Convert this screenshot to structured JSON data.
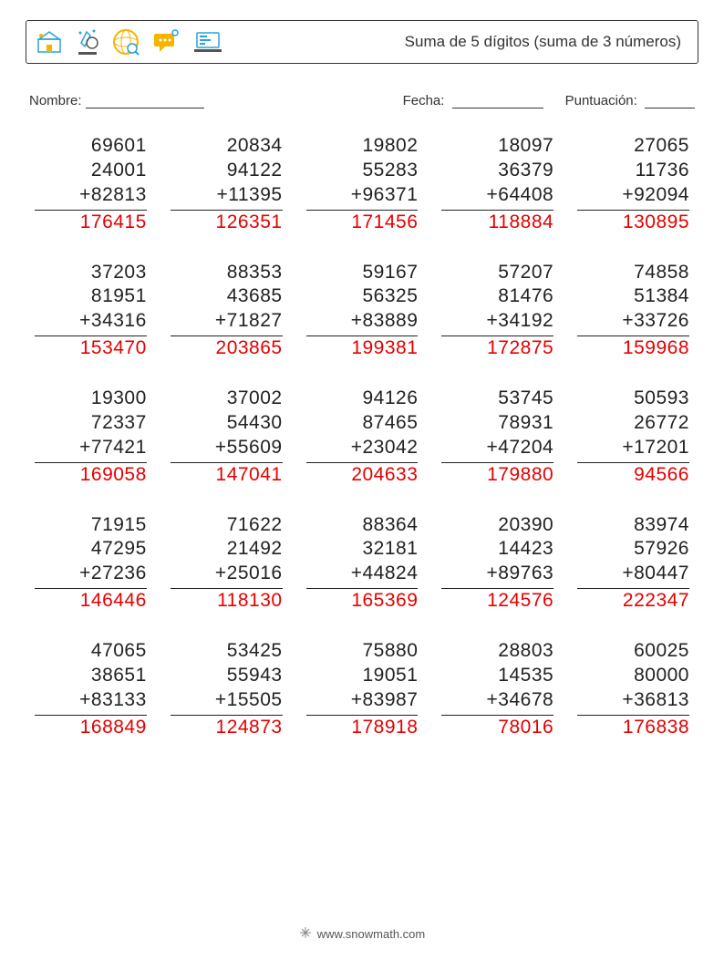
{
  "title": "Suma de 5 dígitos (suma de 3 números)",
  "meta": {
    "name_label": "Nombre:",
    "date_label": "Fecha:",
    "score_label": "Puntuación:"
  },
  "footer": "www.snowmath.com",
  "text_color": "#222222",
  "answer_color": "#e60000",
  "font_size_pt": 16,
  "background_color": "#ffffff",
  "operator": "+",
  "problems": [
    [
      {
        "a": [
          69601,
          24001,
          82813
        ],
        "ans": 176415
      },
      {
        "a": [
          20834,
          94122,
          11395
        ],
        "ans": 126351
      },
      {
        "a": [
          19802,
          55283,
          96371
        ],
        "ans": 171456
      },
      {
        "a": [
          18097,
          36379,
          64408
        ],
        "ans": 118884
      },
      {
        "a": [
          27065,
          11736,
          92094
        ],
        "ans": 130895
      }
    ],
    [
      {
        "a": [
          37203,
          81951,
          34316
        ],
        "ans": 153470
      },
      {
        "a": [
          88353,
          43685,
          71827
        ],
        "ans": 203865
      },
      {
        "a": [
          59167,
          56325,
          83889
        ],
        "ans": 199381
      },
      {
        "a": [
          57207,
          81476,
          34192
        ],
        "ans": 172875
      },
      {
        "a": [
          74858,
          51384,
          33726
        ],
        "ans": 159968
      }
    ],
    [
      {
        "a": [
          19300,
          72337,
          77421
        ],
        "ans": 169058
      },
      {
        "a": [
          37002,
          54430,
          55609
        ],
        "ans": 147041
      },
      {
        "a": [
          94126,
          87465,
          23042
        ],
        "ans": 204633
      },
      {
        "a": [
          53745,
          78931,
          47204
        ],
        "ans": 179880
      },
      {
        "a": [
          50593,
          26772,
          17201
        ],
        "ans": 94566
      }
    ],
    [
      {
        "a": [
          71915,
          47295,
          27236
        ],
        "ans": 146446
      },
      {
        "a": [
          71622,
          21492,
          25016
        ],
        "ans": 118130
      },
      {
        "a": [
          88364,
          32181,
          44824
        ],
        "ans": 165369
      },
      {
        "a": [
          20390,
          14423,
          89763
        ],
        "ans": 124576
      },
      {
        "a": [
          83974,
          57926,
          80447
        ],
        "ans": 222347
      }
    ],
    [
      {
        "a": [
          47065,
          38651,
          83133
        ],
        "ans": 168849
      },
      {
        "a": [
          53425,
          55943,
          15505
        ],
        "ans": 124873
      },
      {
        "a": [
          75880,
          19051,
          83987
        ],
        "ans": 178918
      },
      {
        "a": [
          28803,
          14535,
          34678
        ],
        "ans": 78016
      },
      {
        "a": [
          60025,
          80000,
          36813
        ],
        "ans": 176838
      }
    ]
  ],
  "icon_colors": {
    "school": [
      "#2aa3da",
      "#f4b400"
    ],
    "microscope": [
      "#2aa3da",
      "#555555"
    ],
    "globe": [
      "#f4b400",
      "#2aa3da"
    ],
    "chat": [
      "#f4b400",
      "#2aa3da"
    ],
    "laptop": [
      "#2aa3da",
      "#555555"
    ]
  }
}
